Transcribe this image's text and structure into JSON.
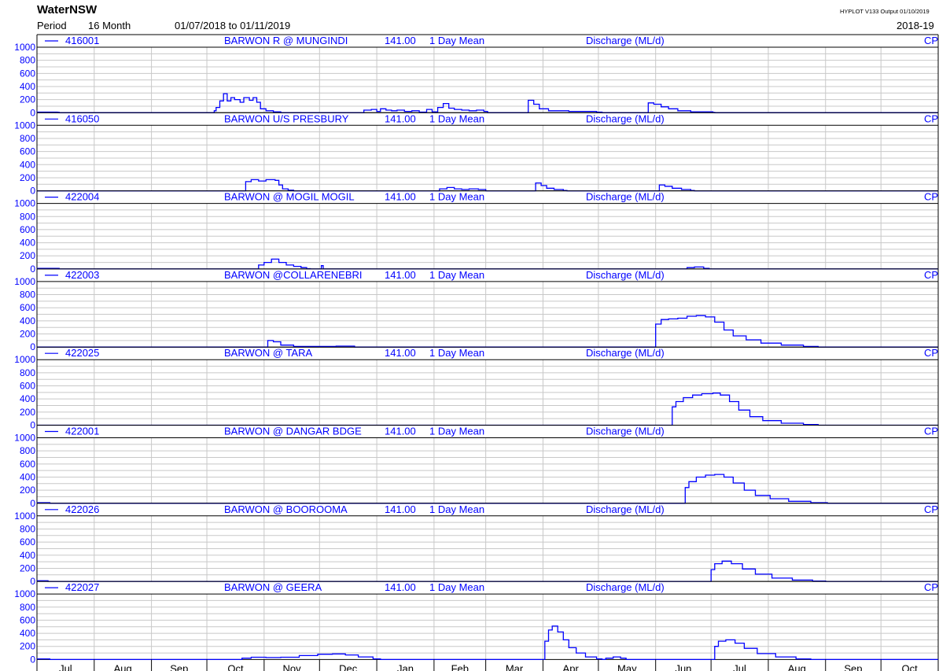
{
  "header": {
    "org": "WaterNSW",
    "period_label": "Period",
    "period_length": "16 Month",
    "date_range": "01/07/2018  to  01/11/2019",
    "version": "HYPLOT V133  Output 01/10/2019",
    "season": "2018-19"
  },
  "chart_data": {
    "type": "line",
    "y_ticks": [
      "1000",
      "800",
      "600",
      "400",
      "200",
      "0"
    ],
    "ylim": [
      0,
      1000
    ],
    "x_start": "2018-07-01",
    "x_end": "2019-11-01",
    "month_labels": [
      "Jul",
      "Aug",
      "Sep",
      "Oct",
      "Nov",
      "Dec",
      "Jan",
      "Feb",
      "Mar",
      "Apr",
      "May",
      "Jun",
      "Jul",
      "Aug",
      "Sep",
      "Oct"
    ],
    "series_color": "#0000ff",
    "grid": true,
    "panels": [
      {
        "id": "416001",
        "site": "BARWON R @ MUNGINDI",
        "variable_code": "141.00",
        "stat": "1 Day Mean",
        "measure": "Discharge (ML/d)",
        "code": "CP",
        "points": [
          [
            "2018-07-01",
            10
          ],
          [
            "2018-07-12",
            8
          ],
          [
            "2018-07-13",
            0
          ],
          [
            "2018-10-04",
            0
          ],
          [
            "2018-10-05",
            30
          ],
          [
            "2018-10-06",
            80
          ],
          [
            "2018-10-08",
            180
          ],
          [
            "2018-10-10",
            290
          ],
          [
            "2018-10-12",
            180
          ],
          [
            "2018-10-14",
            230
          ],
          [
            "2018-10-16",
            200
          ],
          [
            "2018-10-19",
            160
          ],
          [
            "2018-10-21",
            230
          ],
          [
            "2018-10-24",
            190
          ],
          [
            "2018-10-26",
            230
          ],
          [
            "2018-10-28",
            160
          ],
          [
            "2018-10-30",
            60
          ],
          [
            "2018-11-02",
            30
          ],
          [
            "2018-11-06",
            15
          ],
          [
            "2018-11-10",
            0
          ],
          [
            "2018-12-24",
            0
          ],
          [
            "2018-12-25",
            40
          ],
          [
            "2018-12-29",
            50
          ],
          [
            "2019-01-01",
            20
          ],
          [
            "2019-01-03",
            60
          ],
          [
            "2019-01-06",
            40
          ],
          [
            "2019-01-09",
            30
          ],
          [
            "2019-01-12",
            40
          ],
          [
            "2019-01-16",
            20
          ],
          [
            "2019-01-20",
            30
          ],
          [
            "2019-01-24",
            10
          ],
          [
            "2019-01-28",
            50
          ],
          [
            "2019-01-31",
            15
          ],
          [
            "2019-02-03",
            80
          ],
          [
            "2019-02-06",
            140
          ],
          [
            "2019-02-09",
            70
          ],
          [
            "2019-02-12",
            50
          ],
          [
            "2019-02-16",
            40
          ],
          [
            "2019-02-20",
            30
          ],
          [
            "2019-02-24",
            40
          ],
          [
            "2019-02-28",
            20
          ],
          [
            "2019-03-02",
            0
          ],
          [
            "2019-03-23",
            0
          ],
          [
            "2019-03-24",
            190
          ],
          [
            "2019-03-27",
            130
          ],
          [
            "2019-03-30",
            60
          ],
          [
            "2019-04-04",
            30
          ],
          [
            "2019-04-15",
            20
          ],
          [
            "2019-04-30",
            10
          ],
          [
            "2019-05-03",
            0
          ],
          [
            "2019-05-27",
            0
          ],
          [
            "2019-05-28",
            150
          ],
          [
            "2019-05-31",
            130
          ],
          [
            "2019-06-04",
            90
          ],
          [
            "2019-06-08",
            60
          ],
          [
            "2019-06-13",
            30
          ],
          [
            "2019-06-20",
            15
          ],
          [
            "2019-07-02",
            5
          ],
          [
            "2019-07-03",
            0
          ],
          [
            "2019-11-01",
            0
          ]
        ]
      },
      {
        "id": "416050",
        "site": "BARWON U/S PRESBURY",
        "variable_code": "141.00",
        "stat": "1 Day Mean",
        "measure": "Discharge (ML/d)",
        "code": "CP",
        "points": [
          [
            "2018-07-01",
            0
          ],
          [
            "2018-10-21",
            0
          ],
          [
            "2018-10-22",
            140
          ],
          [
            "2018-10-25",
            170
          ],
          [
            "2018-10-29",
            150
          ],
          [
            "2018-11-02",
            170
          ],
          [
            "2018-11-07",
            160
          ],
          [
            "2018-11-09",
            90
          ],
          [
            "2018-11-11",
            30
          ],
          [
            "2018-11-14",
            10
          ],
          [
            "2018-11-17",
            0
          ],
          [
            "2019-02-03",
            0
          ],
          [
            "2019-02-04",
            30
          ],
          [
            "2019-02-08",
            50
          ],
          [
            "2019-02-12",
            30
          ],
          [
            "2019-02-16",
            20
          ],
          [
            "2019-02-20",
            30
          ],
          [
            "2019-02-25",
            20
          ],
          [
            "2019-03-01",
            0
          ],
          [
            "2019-03-27",
            0
          ],
          [
            "2019-03-28",
            120
          ],
          [
            "2019-03-31",
            80
          ],
          [
            "2019-04-03",
            40
          ],
          [
            "2019-04-07",
            20
          ],
          [
            "2019-04-12",
            5
          ],
          [
            "2019-04-14",
            0
          ],
          [
            "2019-06-02",
            0
          ],
          [
            "2019-06-03",
            90
          ],
          [
            "2019-06-06",
            70
          ],
          [
            "2019-06-10",
            40
          ],
          [
            "2019-06-15",
            20
          ],
          [
            "2019-06-20",
            5
          ],
          [
            "2019-06-22",
            0
          ],
          [
            "2019-11-01",
            0
          ]
        ]
      },
      {
        "id": "422004",
        "site": "BARWON @ MOGIL MOGIL",
        "variable_code": "141.00",
        "stat": "1 Day Mean",
        "measure": "Discharge (ML/d)",
        "code": "CP",
        "points": [
          [
            "2018-07-01",
            10
          ],
          [
            "2018-07-12",
            8
          ],
          [
            "2018-07-13",
            0
          ],
          [
            "2018-10-28",
            0
          ],
          [
            "2018-10-29",
            60
          ],
          [
            "2018-11-01",
            100
          ],
          [
            "2018-11-05",
            150
          ],
          [
            "2018-11-09",
            100
          ],
          [
            "2018-11-13",
            60
          ],
          [
            "2018-11-17",
            40
          ],
          [
            "2018-11-21",
            20
          ],
          [
            "2018-11-24",
            5
          ],
          [
            "2018-11-26",
            0
          ],
          [
            "2018-12-01",
            0
          ],
          [
            "2018-12-02",
            50
          ],
          [
            "2018-12-03",
            0
          ],
          [
            "2019-06-17",
            0
          ],
          [
            "2019-06-18",
            20
          ],
          [
            "2019-06-22",
            30
          ],
          [
            "2019-06-27",
            10
          ],
          [
            "2019-06-30",
            0
          ],
          [
            "2019-11-01",
            0
          ]
        ]
      },
      {
        "id": "422003",
        "site": "BARWON @COLLARENEBRI",
        "variable_code": "141.00",
        "stat": "1 Day Mean",
        "measure": "Discharge (ML/d)",
        "code": "CP",
        "points": [
          [
            "2018-07-01",
            0
          ],
          [
            "2018-11-02",
            0
          ],
          [
            "2018-11-03",
            100
          ],
          [
            "2018-11-06",
            80
          ],
          [
            "2018-11-10",
            30
          ],
          [
            "2018-11-17",
            10
          ],
          [
            "2018-12-10",
            15
          ],
          [
            "2018-12-20",
            0
          ],
          [
            "2019-05-31",
            0
          ],
          [
            "2019-06-01",
            350
          ],
          [
            "2019-06-04",
            420
          ],
          [
            "2019-06-08",
            430
          ],
          [
            "2019-06-13",
            440
          ],
          [
            "2019-06-18",
            470
          ],
          [
            "2019-06-23",
            480
          ],
          [
            "2019-06-28",
            460
          ],
          [
            "2019-07-03",
            380
          ],
          [
            "2019-07-08",
            260
          ],
          [
            "2019-07-13",
            170
          ],
          [
            "2019-07-20",
            110
          ],
          [
            "2019-07-28",
            60
          ],
          [
            "2019-08-08",
            30
          ],
          [
            "2019-08-20",
            10
          ],
          [
            "2019-08-28",
            0
          ],
          [
            "2019-11-01",
            0
          ]
        ]
      },
      {
        "id": "422025",
        "site": "BARWON @ TARA",
        "variable_code": "141.00",
        "stat": "1 Day Mean",
        "measure": "Discharge (ML/d)",
        "code": "CP",
        "points": [
          [
            "2018-07-01",
            0
          ],
          [
            "2019-06-09",
            0
          ],
          [
            "2019-06-10",
            280
          ],
          [
            "2019-06-12",
            360
          ],
          [
            "2019-06-16",
            420
          ],
          [
            "2019-06-21",
            460
          ],
          [
            "2019-06-26",
            480
          ],
          [
            "2019-07-02",
            490
          ],
          [
            "2019-07-06",
            460
          ],
          [
            "2019-07-11",
            360
          ],
          [
            "2019-07-16",
            230
          ],
          [
            "2019-07-22",
            130
          ],
          [
            "2019-07-29",
            70
          ],
          [
            "2019-08-08",
            30
          ],
          [
            "2019-08-20",
            10
          ],
          [
            "2019-08-28",
            0
          ],
          [
            "2019-11-01",
            0
          ]
        ]
      },
      {
        "id": "422001",
        "site": "BARWON @ DANGAR BDGE",
        "variable_code": "141.00",
        "stat": "1 Day Mean",
        "measure": "Discharge (ML/d)",
        "code": "CP",
        "points": [
          [
            "2018-07-01",
            10
          ],
          [
            "2018-07-08",
            0
          ],
          [
            "2019-06-16",
            0
          ],
          [
            "2019-06-17",
            240
          ],
          [
            "2019-06-19",
            330
          ],
          [
            "2019-06-23",
            400
          ],
          [
            "2019-06-28",
            430
          ],
          [
            "2019-07-03",
            440
          ],
          [
            "2019-07-08",
            400
          ],
          [
            "2019-07-13",
            310
          ],
          [
            "2019-07-19",
            200
          ],
          [
            "2019-07-25",
            120
          ],
          [
            "2019-08-02",
            70
          ],
          [
            "2019-08-12",
            30
          ],
          [
            "2019-08-24",
            10
          ],
          [
            "2019-09-02",
            0
          ],
          [
            "2019-11-01",
            0
          ]
        ]
      },
      {
        "id": "422026",
        "site": "BARWON @ BOOROOMA",
        "variable_code": "141.00",
        "stat": "1 Day Mean",
        "measure": "Discharge (ML/d)",
        "code": "CP",
        "points": [
          [
            "2018-07-01",
            10
          ],
          [
            "2018-07-07",
            0
          ],
          [
            "2019-06-30",
            0
          ],
          [
            "2019-07-01",
            180
          ],
          [
            "2019-07-03",
            270
          ],
          [
            "2019-07-07",
            310
          ],
          [
            "2019-07-12",
            270
          ],
          [
            "2019-07-18",
            190
          ],
          [
            "2019-07-25",
            110
          ],
          [
            "2019-08-03",
            50
          ],
          [
            "2019-08-14",
            20
          ],
          [
            "2019-08-25",
            5
          ],
          [
            "2019-09-01",
            0
          ],
          [
            "2019-11-01",
            0
          ]
        ]
      },
      {
        "id": "422027",
        "site": "BARWON @ GEERA",
        "variable_code": "141.00",
        "stat": "1 Day Mean",
        "measure": "Discharge (ML/d)",
        "code": "CP",
        "points": [
          [
            "2018-07-01",
            10
          ],
          [
            "2018-07-08",
            0
          ],
          [
            "2018-10-18",
            0
          ],
          [
            "2018-10-20",
            20
          ],
          [
            "2018-10-25",
            35
          ],
          [
            "2018-11-02",
            30
          ],
          [
            "2018-11-10",
            35
          ],
          [
            "2018-11-20",
            60
          ],
          [
            "2018-11-30",
            80
          ],
          [
            "2018-12-08",
            85
          ],
          [
            "2018-12-15",
            70
          ],
          [
            "2018-12-22",
            40
          ],
          [
            "2018-12-30",
            10
          ],
          [
            "2019-01-03",
            0
          ],
          [
            "2019-04-01",
            0
          ],
          [
            "2019-04-02",
            280
          ],
          [
            "2019-04-04",
            450
          ],
          [
            "2019-04-06",
            510
          ],
          [
            "2019-04-09",
            420
          ],
          [
            "2019-04-12",
            300
          ],
          [
            "2019-04-15",
            180
          ],
          [
            "2019-04-19",
            100
          ],
          [
            "2019-04-24",
            40
          ],
          [
            "2019-04-30",
            10
          ],
          [
            "2019-05-03",
            0
          ],
          [
            "2019-05-05",
            20
          ],
          [
            "2019-05-09",
            40
          ],
          [
            "2019-05-13",
            20
          ],
          [
            "2019-05-16",
            0
          ],
          [
            "2019-07-02",
            0
          ],
          [
            "2019-07-03",
            200
          ],
          [
            "2019-07-05",
            280
          ],
          [
            "2019-07-09",
            300
          ],
          [
            "2019-07-14",
            250
          ],
          [
            "2019-07-19",
            170
          ],
          [
            "2019-07-26",
            90
          ],
          [
            "2019-08-05",
            40
          ],
          [
            "2019-08-16",
            10
          ],
          [
            "2019-08-24",
            0
          ],
          [
            "2019-11-01",
            0
          ]
        ]
      }
    ]
  }
}
